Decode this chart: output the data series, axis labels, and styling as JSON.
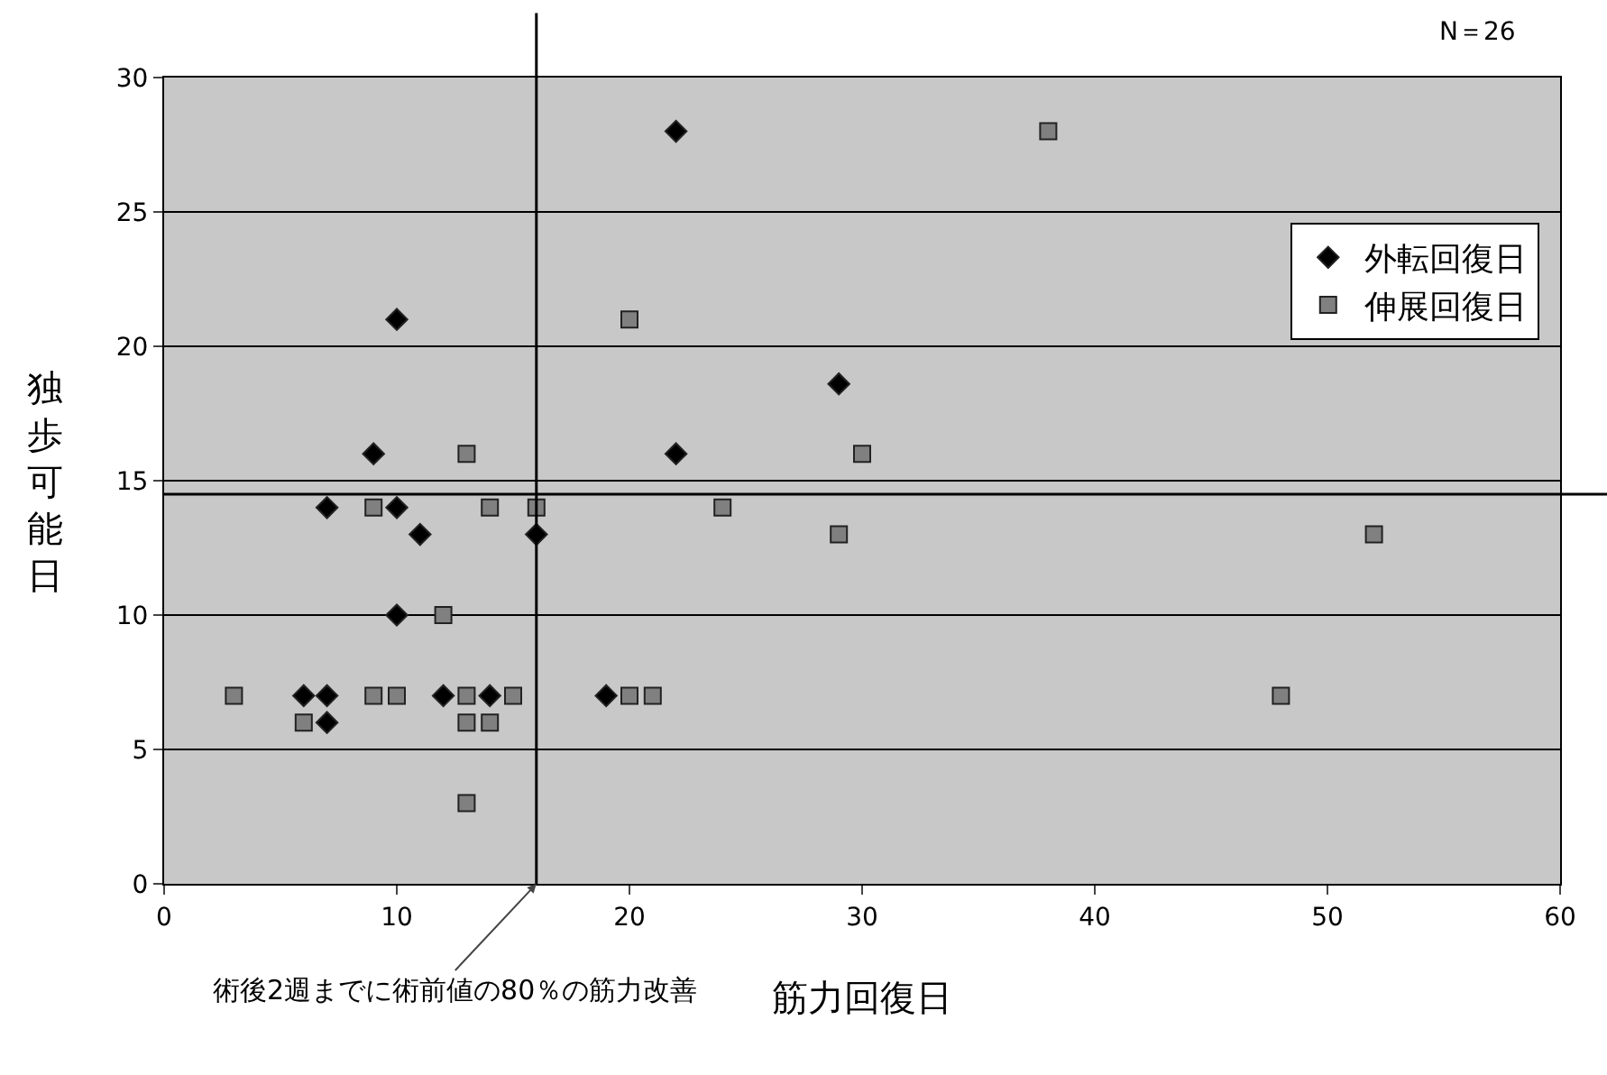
{
  "chart_data": {
    "type": "scatter",
    "xlabel": "筋力回復日",
    "ylabel": "独歩可能日",
    "series": [
      {
        "name": "外転回復日",
        "color": "#000000",
        "marker": "diamond",
        "x": [
          22,
          10,
          29,
          22,
          9,
          7,
          10,
          11,
          16,
          10,
          6,
          7,
          12,
          14,
          19,
          7
        ],
        "values": [
          28,
          21,
          18.6,
          16,
          16,
          14,
          14,
          13,
          13,
          10,
          7,
          7,
          7,
          7,
          7,
          6
        ]
      },
      {
        "name": "伸展回復日",
        "color": "#808080",
        "marker": "square",
        "x": [
          38,
          20,
          30,
          13,
          9,
          14,
          16,
          24,
          29,
          52,
          12,
          3,
          9,
          10,
          13,
          15,
          20,
          21,
          48,
          6,
          13,
          14,
          13
        ],
        "values": [
          28,
          21,
          16,
          16,
          14,
          14,
          14,
          14,
          13,
          13,
          10,
          7,
          7,
          7,
          7,
          7,
          7,
          7,
          7,
          6,
          6,
          6,
          3
        ]
      }
    ],
    "xlim": [
      0,
      60
    ],
    "xticks": [
      0,
      10,
      20,
      30,
      40,
      50,
      60
    ],
    "ylim": [
      0,
      30
    ],
    "yticks": [
      0,
      5,
      10,
      15,
      20,
      25,
      30
    ],
    "grid": "y",
    "legend": "top right",
    "ref_lines": [
      {
        "axis": "x",
        "value": 16
      },
      {
        "axis": "y",
        "value": 14.5
      }
    ],
    "annotations": [
      "N＝26",
      {
        "text": "術後2週までに術前値の80％の筋力改善",
        "x": 16,
        "y": 0
      }
    ]
  }
}
